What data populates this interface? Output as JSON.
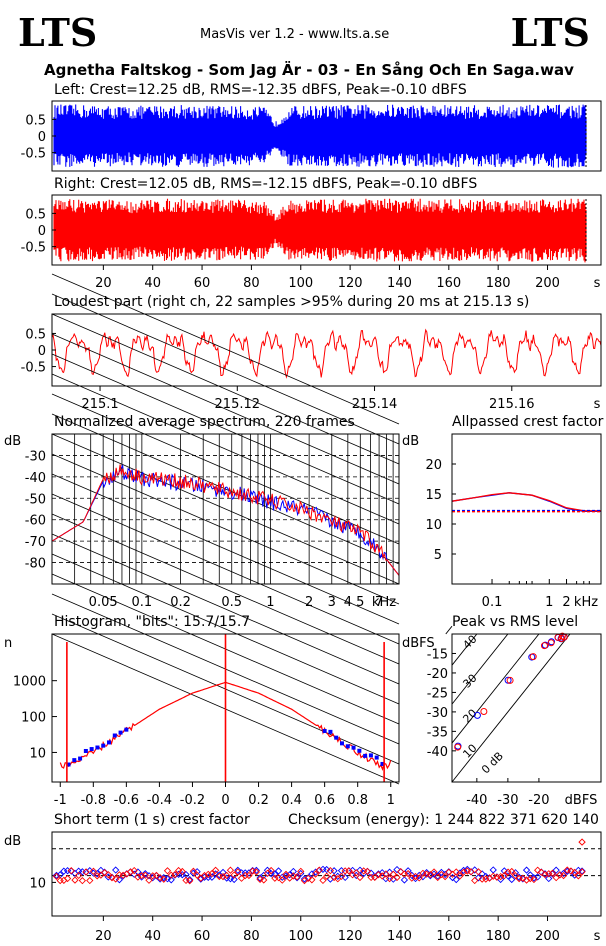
{
  "header": {
    "logo_left": "LTS",
    "logo_right": "LTS",
    "version": "MasVis ver 1.2 - www.lts.a.se",
    "filename": "Agnetha Faltskog - Som Jag Är - 03 - En Sång Och En Saga.wav"
  },
  "colors": {
    "left": "#0000ff",
    "right": "#ff0000",
    "axis": "#000000"
  },
  "waveform_left": {
    "title": "Left: Crest=12.25 dB, RMS=-12.35 dBFS, Peak=-0.10 dBFS",
    "y_ticks": [
      "0.5",
      "0",
      "-0.5"
    ],
    "ylim": [
      -1,
      1
    ],
    "duration_s": 216
  },
  "waveform_right": {
    "title": "Right: Crest=12.05 dB, RMS=-12.15 dBFS, Peak=-0.10 dBFS",
    "y_ticks": [
      "0.5",
      "0",
      "-0.5"
    ],
    "x_ticks": [
      "20",
      "40",
      "60",
      "80",
      "100",
      "120",
      "140",
      "160",
      "180",
      "200"
    ],
    "x_unit": "s"
  },
  "loudest": {
    "title": "Loudest part (right ch, 22 samples >95% during 20 ms at 215.13 s)",
    "y_ticks": [
      "0.5",
      "0",
      "-0.5"
    ],
    "x_ticks": [
      "215.1",
      "215.12",
      "215.14",
      "215.16"
    ],
    "x_unit": "s",
    "xlim": [
      215.093,
      215.173
    ]
  },
  "spectrum": {
    "title": "Normalized average spectrum, 220 frames",
    "y_unit": "dB",
    "y_ticks": [
      "-30",
      "-40",
      "-50",
      "-60",
      "-70",
      "-80"
    ],
    "x_ticks": [
      "0.05",
      "0.1",
      "0.2",
      "0.5",
      "1",
      "2",
      "3",
      "4",
      "5",
      "7"
    ],
    "x_unit": "kHz"
  },
  "allpass": {
    "title": "Allpassed crest factor",
    "y_unit": "dB",
    "y_ticks": [
      "20",
      "15",
      "10",
      "5"
    ],
    "x_ticks": [
      "0.1",
      "1",
      "2"
    ],
    "x_unit": "kHz"
  },
  "histogram": {
    "title": "Histogram, \"bits\": 15.7/15.7",
    "y_unit": "n",
    "y_ticks": [
      "1000",
      "100",
      "10"
    ],
    "x_ticks": [
      "-1",
      "-0.8",
      "-0.6",
      "-0.4",
      "-0.2",
      "0",
      "0.2",
      "0.4",
      "0.6",
      "0.8",
      "1"
    ]
  },
  "peak_rms": {
    "title": "Peak vs RMS level",
    "y_unit": "dBFS",
    "y_ticks": [
      "-15",
      "-20",
      "-25",
      "-30",
      "-35",
      "-40"
    ],
    "x_ticks": [
      "-40",
      "-30",
      "-20"
    ],
    "x_unit": "dBFS",
    "crest_labels": [
      "40",
      "30",
      "20",
      "10",
      "0 dB"
    ]
  },
  "short_term": {
    "title": "Short term (1 s) crest factor",
    "checksum": "Checksum (energy):  1 244 822 371 620 140",
    "y_unit": "dB",
    "y_ticks": [
      "10"
    ],
    "x_ticks": [
      "20",
      "40",
      "60",
      "80",
      "100",
      "120",
      "140",
      "160",
      "180",
      "200"
    ],
    "x_unit": "s"
  },
  "chart_data": [
    {
      "type": "area",
      "title": "Left: Crest=12.25 dB, RMS=-12.35 dBFS, Peak=-0.10 dBFS",
      "xlim": [
        0,
        216
      ],
      "ylim": [
        -1,
        1
      ],
      "series": [
        {
          "name": "Left",
          "envelope_x": [
            0,
            10,
            30,
            50,
            70,
            85,
            90,
            95,
            110,
            130,
            150,
            170,
            190,
            205,
            212,
            214
          ],
          "envelope_y": [
            0.95,
            0.95,
            0.9,
            0.95,
            0.92,
            0.88,
            0.45,
            0.9,
            0.93,
            0.95,
            0.95,
            0.93,
            0.95,
            0.95,
            0.95,
            0.95
          ]
        }
      ]
    },
    {
      "type": "area",
      "title": "Right: Crest=12.05 dB, RMS=-12.15 dBFS, Peak=-0.10 dBFS",
      "xlim": [
        0,
        216
      ],
      "ylim": [
        -1,
        1
      ],
      "series": [
        {
          "name": "Right",
          "envelope_x": [
            0,
            10,
            30,
            50,
            70,
            85,
            90,
            95,
            110,
            130,
            150,
            170,
            190,
            205,
            212,
            214
          ],
          "envelope_y": [
            0.95,
            0.95,
            0.9,
            0.95,
            0.92,
            0.88,
            0.45,
            0.9,
            0.93,
            0.95,
            0.95,
            0.93,
            0.95,
            0.95,
            0.95,
            0.98
          ]
        }
      ]
    },
    {
      "type": "line",
      "title": "Loudest part (right ch, 22 samples >95% during 20 ms at 215.13 s)",
      "xlim": [
        215.093,
        215.173
      ],
      "ylim": [
        -1,
        1
      ],
      "series": [
        {
          "name": "right",
          "approx_period_s": 0.0047,
          "amplitude": 0.8
        }
      ]
    },
    {
      "type": "line",
      "title": "Normalized average spectrum, 220 frames",
      "xscale": "log",
      "xlim": [
        0.02,
        10
      ],
      "ylim": [
        -90,
        -20
      ],
      "series": [
        {
          "name": "left",
          "x": [
            0.02,
            0.035,
            0.05,
            0.07,
            0.1,
            0.2,
            0.5,
            1,
            2,
            3,
            5,
            7,
            10
          ],
          "y": [
            -70,
            -61,
            -42,
            -38,
            -41,
            -43,
            -47,
            -52,
            -56,
            -61,
            -66,
            -74,
            -86
          ]
        },
        {
          "name": "right",
          "x": [
            0.02,
            0.035,
            0.05,
            0.07,
            0.1,
            0.2,
            0.5,
            1,
            2,
            3,
            5,
            7,
            10
          ],
          "y": [
            -70,
            -61,
            -41,
            -37,
            -40,
            -42,
            -47,
            -51,
            -56,
            -61,
            -66,
            -74,
            -86
          ]
        }
      ]
    },
    {
      "type": "line",
      "title": "Allpassed crest factor",
      "xscale": "log",
      "xlim": [
        0.02,
        8
      ],
      "ylim": [
        0,
        25
      ],
      "series": [
        {
          "name": "left",
          "x": [
            0.02,
            0.05,
            0.1,
            0.2,
            0.5,
            1,
            2,
            4,
            8
          ],
          "y": [
            13.8,
            14.4,
            14.8,
            15.2,
            14.8,
            13.8,
            12.6,
            12.1,
            12.1
          ]
        },
        {
          "name": "right",
          "x": [
            0.02,
            0.05,
            0.1,
            0.2,
            0.5,
            1,
            2,
            4,
            8
          ],
          "y": [
            13.8,
            14.4,
            14.9,
            15.2,
            14.8,
            13.9,
            12.7,
            12.2,
            12.2
          ]
        },
        {
          "name": "left-ref",
          "x": [
            0.02,
            8
          ],
          "y": [
            12.25,
            12.25
          ]
        },
        {
          "name": "right-ref",
          "x": [
            0.02,
            8
          ],
          "y": [
            12.05,
            12.05
          ]
        }
      ]
    },
    {
      "type": "line",
      "title": "Histogram, \"bits\": 15.7/15.7",
      "yscale": "log",
      "xlim": [
        -1.05,
        1.05
      ],
      "ylim": [
        1.5,
        20000
      ],
      "series": [
        {
          "name": "right",
          "x": [
            -1,
            -0.95,
            -0.8,
            -0.6,
            -0.4,
            -0.2,
            0,
            0.2,
            0.4,
            0.6,
            0.8,
            0.95,
            1
          ],
          "y": [
            5,
            4,
            10,
            40,
            160,
            450,
            900,
            450,
            160,
            40,
            10,
            4,
            5
          ]
        }
      ]
    },
    {
      "type": "scatter",
      "title": "Peak vs RMS level",
      "xlim": [
        -48,
        0
      ],
      "ylim": [
        -48,
        -10
      ],
      "series": [
        {
          "name": "left",
          "x": [
            -46,
            -40,
            -30,
            -22,
            -18,
            -16,
            -14,
            -13,
            -12.5,
            -12
          ],
          "y": [
            -39,
            -31,
            -22,
            -16,
            -13,
            -12,
            -11,
            -11,
            -10.8,
            -10.6
          ]
        },
        {
          "name": "right",
          "x": [
            -46,
            -38,
            -29,
            -22,
            -18,
            -16,
            -14,
            -13,
            -12.5,
            -12
          ],
          "y": [
            -39,
            -30,
            -22,
            -16,
            -13,
            -12,
            -11,
            -11,
            -10.8,
            -10.6
          ]
        }
      ]
    },
    {
      "type": "scatter",
      "title": "Short term (1 s) crest factor",
      "xlim": [
        0,
        216
      ],
      "ylim": [
        0,
        25
      ],
      "crest_mean_db": 12,
      "series": [
        {
          "name": "left",
          "mean": 12.3
        },
        {
          "name": "right",
          "mean": 12.1
        }
      ]
    }
  ]
}
